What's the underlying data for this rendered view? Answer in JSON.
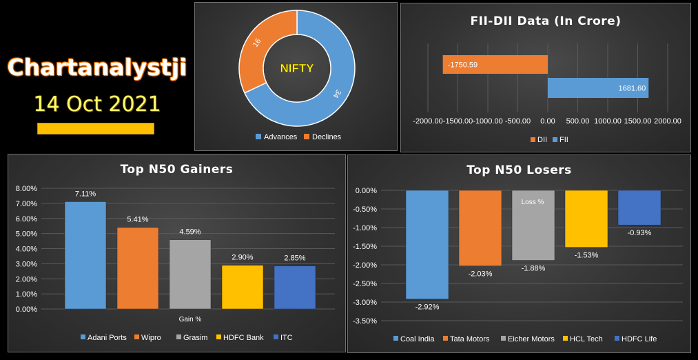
{
  "brand": {
    "title": "Chartanalystji",
    "date": "14 Oct 2021",
    "bar_color": "#ffc000"
  },
  "chart_data": [
    {
      "type": "pie",
      "variant": "doughnut",
      "center_label": "NIFTY",
      "categories": [
        "Advances",
        "Declines"
      ],
      "values": [
        34,
        16
      ],
      "colors": [
        "#5b9bd5",
        "#ed7d31"
      ],
      "legend": "bottom"
    },
    {
      "type": "bar",
      "orientation": "horizontal",
      "title": "FII-DII Data  (In Crore)",
      "categories": [
        "DII",
        "FII"
      ],
      "values": [
        -1750.59,
        1681.6
      ],
      "value_labels": [
        "-1750.59",
        "1681.60"
      ],
      "colors": [
        "#ed7d31",
        "#5b9bd5"
      ],
      "xlim": [
        -2000,
        2000
      ],
      "x_ticks": [
        "-2000.00",
        "-1500.00",
        "-1000.00",
        "-500.00",
        "0.00",
        "500.00",
        "1000.00",
        "1500.00",
        "2000.00"
      ],
      "grid": true,
      "legend": "bottom"
    },
    {
      "type": "bar",
      "title": "Top  N50 Gainers",
      "xlabel": "Gain %",
      "series": [
        {
          "name": "Adani Ports",
          "value": 7.11,
          "label": "7.11%",
          "color": "#5b9bd5"
        },
        {
          "name": "Wipro",
          "value": 5.41,
          "label": "5.41%",
          "color": "#ed7d31"
        },
        {
          "name": "Grasim",
          "value": 4.59,
          "label": "4.59%",
          "color": "#a5a5a5"
        },
        {
          "name": "HDFC Bank",
          "value": 2.9,
          "label": "2.90%",
          "color": "#ffc000"
        },
        {
          "name": "ITC",
          "value": 2.85,
          "label": "2.85%",
          "color": "#4472c4"
        }
      ],
      "ylim": [
        0,
        8
      ],
      "y_ticks": [
        "0.00%",
        "1.00%",
        "2.00%",
        "3.00%",
        "4.00%",
        "5.00%",
        "6.00%",
        "7.00%",
        "8.00%"
      ],
      "grid": true,
      "legend": "bottom"
    },
    {
      "type": "bar",
      "title": "Top  N50 Losers",
      "xlabel": "Loss %",
      "series": [
        {
          "name": "Coal India",
          "value": -2.92,
          "label": "-2.92%",
          "color": "#5b9bd5"
        },
        {
          "name": "Tata Motors",
          "value": -2.03,
          "label": "-2.03%",
          "color": "#ed7d31"
        },
        {
          "name": "Eicher Motors",
          "value": -1.88,
          "label": "-1.88%",
          "color": "#a5a5a5"
        },
        {
          "name": "HCL Tech",
          "value": -1.53,
          "label": "-1.53%",
          "color": "#ffc000"
        },
        {
          "name": "HDFC Life",
          "value": -0.93,
          "label": "-0.93%",
          "color": "#4472c4"
        }
      ],
      "ylim": [
        -3.5,
        0
      ],
      "y_ticks": [
        "0.00%",
        "-0.50%",
        "-1.00%",
        "-1.50%",
        "-2.00%",
        "-2.50%",
        "-3.00%",
        "-3.50%"
      ],
      "grid": true,
      "legend": "bottom"
    }
  ]
}
